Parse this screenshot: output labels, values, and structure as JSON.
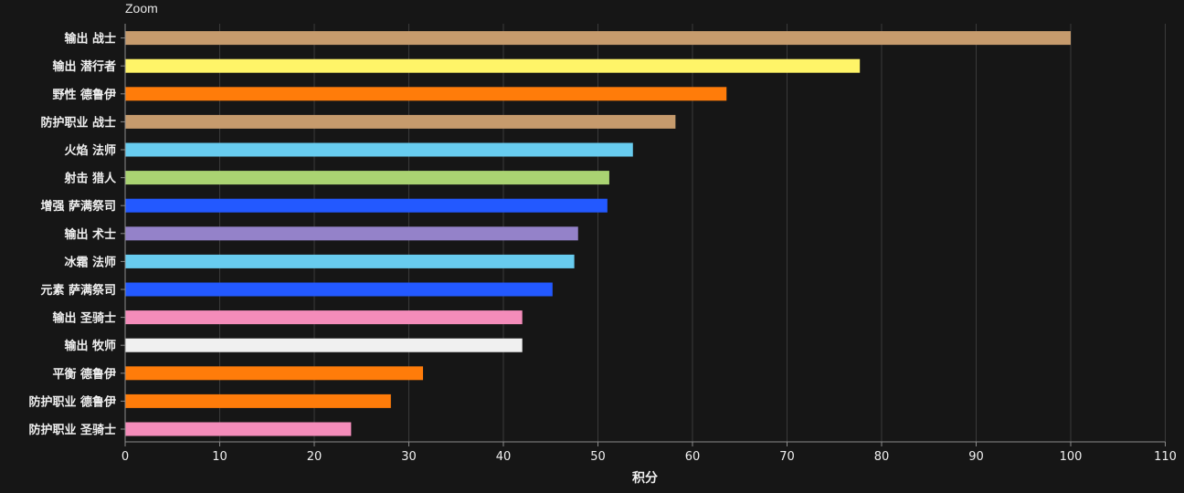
{
  "toolbar": {
    "zoom_label": "Zoom"
  },
  "chart_data": {
    "type": "bar",
    "orientation": "horizontal",
    "title": "",
    "xlabel": "积分",
    "ylabel": "",
    "xlim": [
      0,
      110
    ],
    "x_ticks": [
      0,
      10,
      20,
      30,
      40,
      50,
      60,
      70,
      80,
      90,
      100,
      110
    ],
    "grid": true,
    "legend": "none",
    "categories": [
      "输出 战士",
      "输出 潜行者",
      "野性 德鲁伊",
      "防护职业 战士",
      "火焰 法师",
      "射击 猎人",
      "增强 萨满祭司",
      "输出 术士",
      "冰霜 法师",
      "元素 萨满祭司",
      "输出 圣骑士",
      "输出 牧师",
      "平衡 德鲁伊",
      "防护职业 德鲁伊",
      "防护职业 圣骑士"
    ],
    "values": [
      100,
      77.7,
      63.6,
      58.2,
      53.7,
      51.2,
      51.0,
      47.9,
      47.5,
      45.2,
      42.0,
      42.0,
      31.5,
      28.1,
      23.9
    ],
    "colors": [
      "#C69B6D",
      "#FFF468",
      "#FF7C0A",
      "#C69B6D",
      "#68CCEF",
      "#AAD372",
      "#2359FF",
      "#9482C9",
      "#68CCEF",
      "#2359FF",
      "#F48CBA",
      "#F0F0F0",
      "#FF7C0A",
      "#FF7C0A",
      "#F48CBA"
    ]
  }
}
